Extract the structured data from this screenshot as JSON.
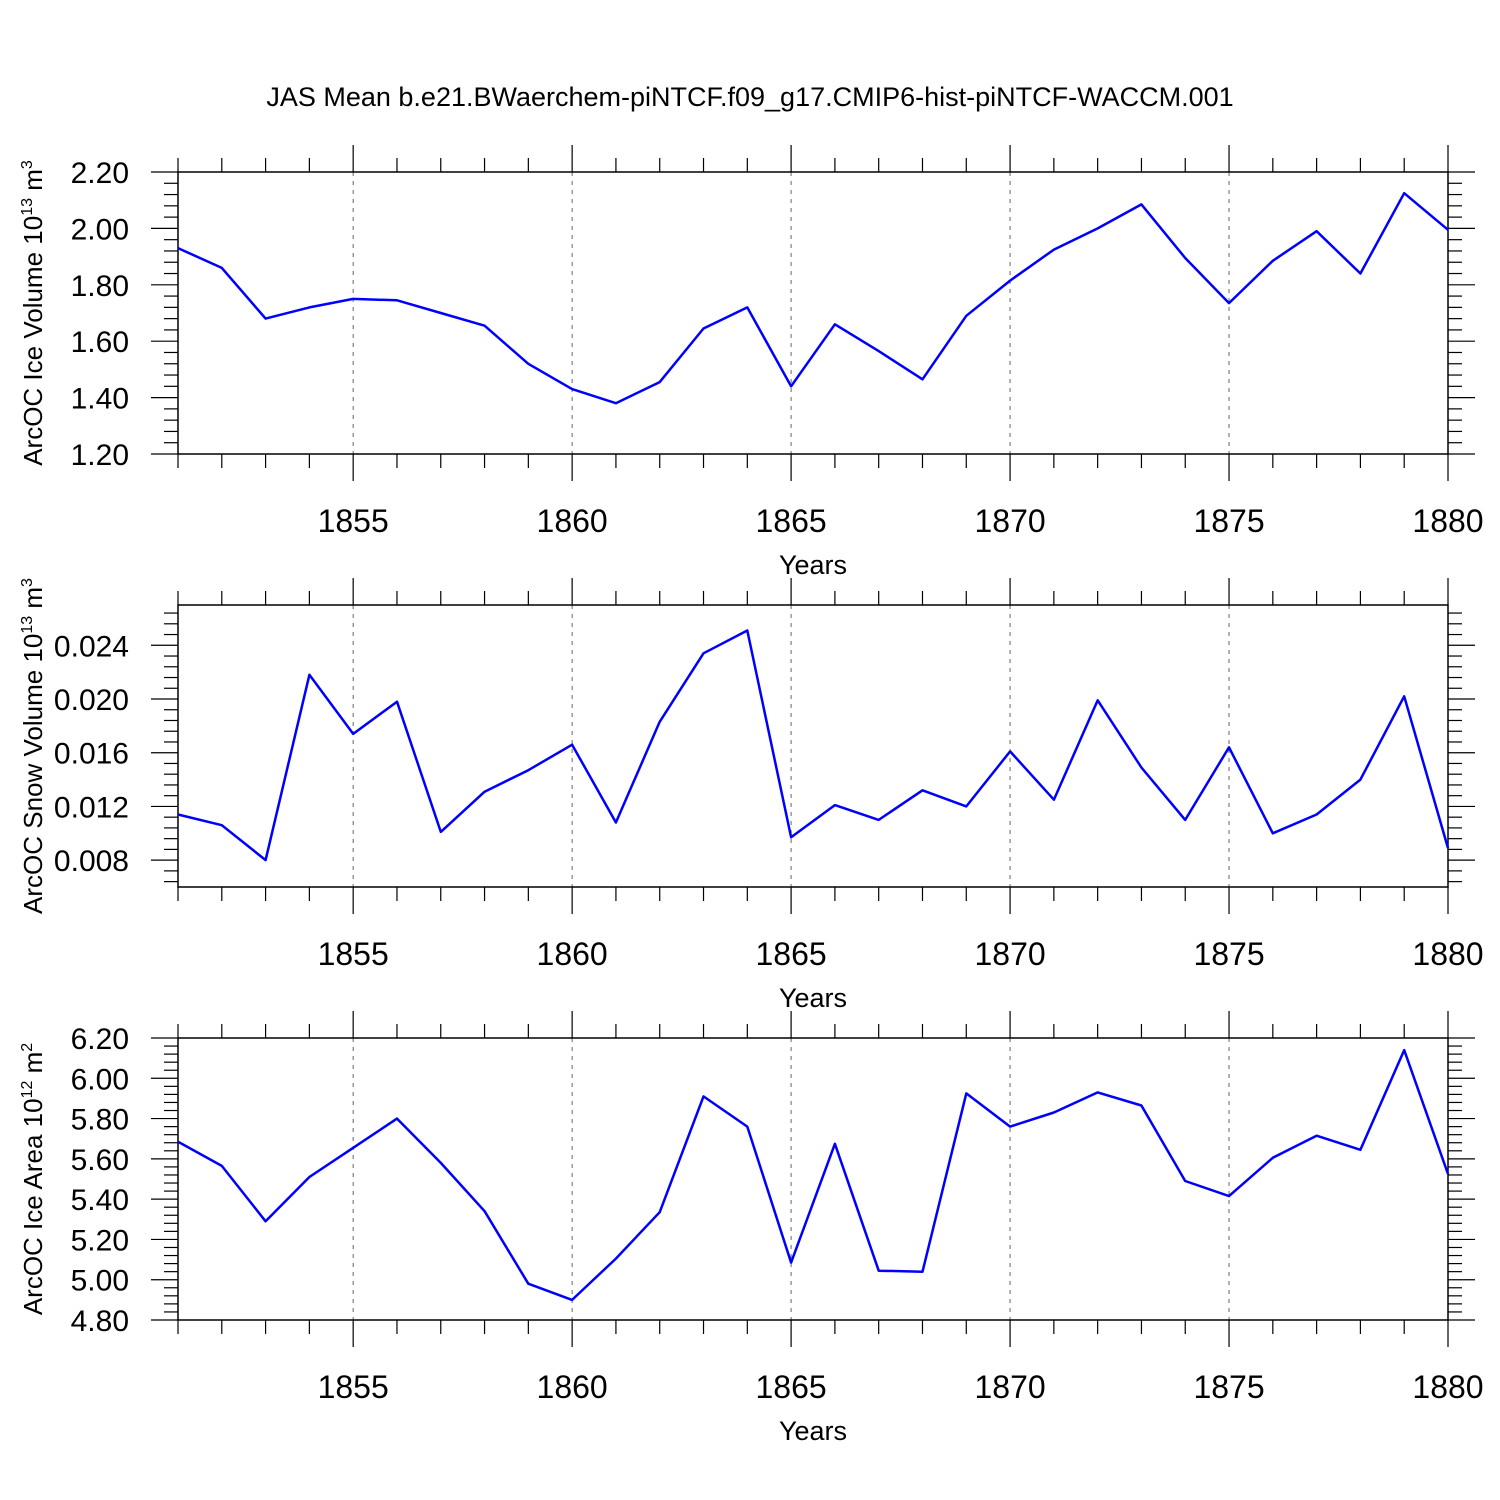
{
  "title": "JAS Mean b.e21.BWaerchem-piNTCF.f09_g17.CMIP6-hist-piNTCF-WACCM.001",
  "colors": {
    "line": "#0000ff",
    "axis": "#000000",
    "grid": "#666666"
  },
  "chart_data": [
    {
      "type": "line",
      "ylabel": "ArcOC Ice Volume 10",
      "ylabel_exp": "13",
      "ylabel_unit": " m",
      "ylabel_unit_exp": "3",
      "xlabel": "Years",
      "xlim": [
        1851,
        1880
      ],
      "ylim": [
        1.2,
        2.2
      ],
      "yticks": [
        "1.20",
        "1.40",
        "1.60",
        "1.80",
        "2.00",
        "2.20"
      ],
      "xticks": [
        "1855",
        "1860",
        "1865",
        "1870",
        "1875",
        "1880"
      ],
      "grid": "vertical dashed at x major ticks",
      "x": [
        1851,
        1852,
        1853,
        1854,
        1855,
        1856,
        1857,
        1858,
        1859,
        1860,
        1861,
        1862,
        1863,
        1864,
        1865,
        1866,
        1867,
        1868,
        1869,
        1870,
        1871,
        1872,
        1873,
        1874,
        1875,
        1876,
        1877,
        1878,
        1879,
        1880
      ],
      "values": [
        1.93,
        1.86,
        1.68,
        1.72,
        1.75,
        1.745,
        1.7,
        1.655,
        1.52,
        1.43,
        1.38,
        1.455,
        1.645,
        1.72,
        1.44,
        1.66,
        1.565,
        1.465,
        1.69,
        1.815,
        1.925,
        2.0,
        2.085,
        1.895,
        1.735,
        1.885,
        1.99,
        1.84,
        2.125,
        1.995
      ]
    },
    {
      "type": "line",
      "ylabel": "ArcOC Snow Volume 10",
      "ylabel_exp": "13",
      "ylabel_unit": " m",
      "ylabel_unit_exp": "3",
      "xlabel": "Years",
      "xlim": [
        1851,
        1880
      ],
      "ylim": [
        0.006,
        0.027
      ],
      "yticks": [
        "0.008",
        "0.012",
        "0.016",
        "0.020",
        "0.024"
      ],
      "xticks": [
        "1855",
        "1860",
        "1865",
        "1870",
        "1875",
        "1880"
      ],
      "grid": "vertical dashed at x major ticks",
      "x": [
        1851,
        1852,
        1853,
        1854,
        1855,
        1856,
        1857,
        1858,
        1859,
        1860,
        1861,
        1862,
        1863,
        1864,
        1865,
        1866,
        1867,
        1868,
        1869,
        1870,
        1871,
        1872,
        1873,
        1874,
        1875,
        1876,
        1877,
        1878,
        1879,
        1880
      ],
      "values": [
        0.0114,
        0.0106,
        0.008,
        0.0218,
        0.0174,
        0.0198,
        0.0101,
        0.0131,
        0.0147,
        0.0166,
        0.0108,
        0.0183,
        0.0234,
        0.0251,
        0.0097,
        0.0121,
        0.011,
        0.0132,
        0.012,
        0.0161,
        0.0125,
        0.0199,
        0.0149,
        0.011,
        0.0164,
        0.01,
        0.0114,
        0.014,
        0.0202,
        0.0089
      ]
    },
    {
      "type": "line",
      "ylabel": "ArcOC Ice Area 10",
      "ylabel_exp": "12",
      "ylabel_unit": " m",
      "ylabel_unit_exp": "2",
      "xlabel": "Years",
      "xlim": [
        1851,
        1880
      ],
      "ylim": [
        4.8,
        6.2
      ],
      "yticks": [
        "4.80",
        "5.00",
        "5.20",
        "5.40",
        "5.60",
        "5.80",
        "6.00",
        "6.20"
      ],
      "xticks": [
        "1855",
        "1860",
        "1865",
        "1870",
        "1875",
        "1880"
      ],
      "grid": "vertical dashed at x major ticks",
      "x": [
        1851,
        1852,
        1853,
        1854,
        1855,
        1856,
        1857,
        1858,
        1859,
        1860,
        1861,
        1862,
        1863,
        1864,
        1865,
        1866,
        1867,
        1868,
        1869,
        1870,
        1871,
        1872,
        1873,
        1874,
        1875,
        1876,
        1877,
        1878,
        1879,
        1880
      ],
      "values": [
        5.685,
        5.565,
        5.29,
        5.51,
        5.655,
        5.8,
        5.58,
        5.34,
        4.98,
        4.9,
        5.105,
        5.335,
        5.91,
        5.76,
        5.085,
        5.675,
        5.045,
        5.04,
        5.925,
        5.76,
        5.83,
        5.93,
        5.865,
        5.49,
        5.415,
        5.605,
        5.715,
        5.645,
        6.14,
        5.525
      ]
    }
  ]
}
